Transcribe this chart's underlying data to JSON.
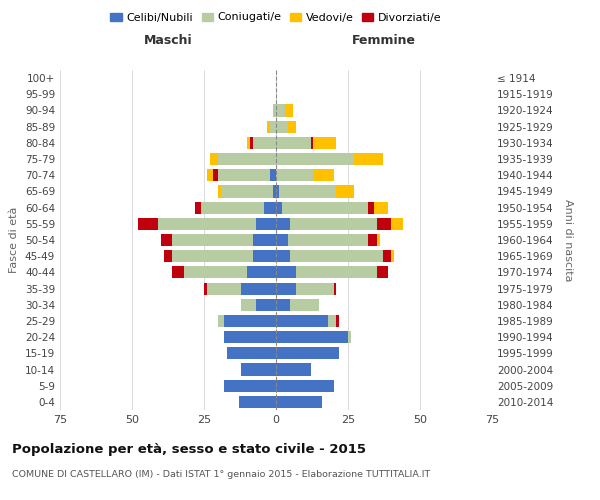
{
  "age_groups": [
    "100+",
    "95-99",
    "90-94",
    "85-89",
    "80-84",
    "75-79",
    "70-74",
    "65-69",
    "60-64",
    "55-59",
    "50-54",
    "45-49",
    "40-44",
    "35-39",
    "30-34",
    "25-29",
    "20-24",
    "15-19",
    "10-14",
    "5-9",
    "0-4"
  ],
  "birth_years": [
    "≤ 1914",
    "1915-1919",
    "1920-1924",
    "1925-1929",
    "1930-1934",
    "1935-1939",
    "1940-1944",
    "1945-1949",
    "1950-1954",
    "1955-1959",
    "1960-1964",
    "1965-1969",
    "1970-1974",
    "1975-1979",
    "1980-1984",
    "1985-1989",
    "1990-1994",
    "1995-1999",
    "2000-2004",
    "2005-2009",
    "2010-2014"
  ],
  "male_celibe": [
    0,
    0,
    0,
    0,
    0,
    0,
    2,
    1,
    4,
    7,
    8,
    8,
    10,
    12,
    7,
    18,
    18,
    17,
    12,
    18,
    13
  ],
  "male_coniugato": [
    0,
    0,
    1,
    2,
    8,
    20,
    18,
    18,
    22,
    34,
    28,
    28,
    22,
    12,
    5,
    2,
    0,
    0,
    0,
    0,
    0
  ],
  "male_vedovo": [
    0,
    0,
    0,
    1,
    1,
    3,
    2,
    1,
    0,
    0,
    0,
    0,
    0,
    0,
    0,
    0,
    0,
    0,
    0,
    0,
    0
  ],
  "male_divorziato": [
    0,
    0,
    0,
    0,
    1,
    0,
    2,
    0,
    2,
    7,
    4,
    3,
    4,
    1,
    0,
    0,
    0,
    0,
    0,
    0,
    0
  ],
  "female_nubile": [
    0,
    0,
    0,
    0,
    0,
    0,
    0,
    1,
    2,
    5,
    4,
    5,
    7,
    7,
    5,
    18,
    25,
    22,
    12,
    20,
    16
  ],
  "female_coniugata": [
    0,
    0,
    3,
    4,
    12,
    27,
    13,
    20,
    30,
    30,
    28,
    32,
    28,
    13,
    10,
    3,
    1,
    0,
    0,
    0,
    0
  ],
  "female_vedova": [
    0,
    0,
    3,
    3,
    8,
    10,
    7,
    6,
    5,
    4,
    1,
    1,
    0,
    0,
    0,
    0,
    0,
    0,
    0,
    0,
    0
  ],
  "female_divorziata": [
    0,
    0,
    0,
    0,
    1,
    0,
    0,
    0,
    2,
    5,
    3,
    3,
    4,
    1,
    0,
    1,
    0,
    0,
    0,
    0,
    0
  ],
  "colors": {
    "celibe": "#4472c4",
    "coniugato": "#b8cca4",
    "vedovo": "#ffc000",
    "divorziato": "#c0000c"
  },
  "title": "Popolazione per età, sesso e stato civile - 2015",
  "subtitle": "COMUNE DI CASTELLARO (IM) - Dati ISTAT 1° gennaio 2015 - Elaborazione TUTTITALIA.IT",
  "xlabel_left": "Maschi",
  "xlabel_right": "Femmine",
  "ylabel_left": "Fasce di età",
  "ylabel_right": "Anni di nascita",
  "xlim": 75,
  "background_color": "#ffffff",
  "legend_labels": [
    "Celibi/Nubili",
    "Coniugati/e",
    "Vedovi/e",
    "Divorziati/e"
  ]
}
